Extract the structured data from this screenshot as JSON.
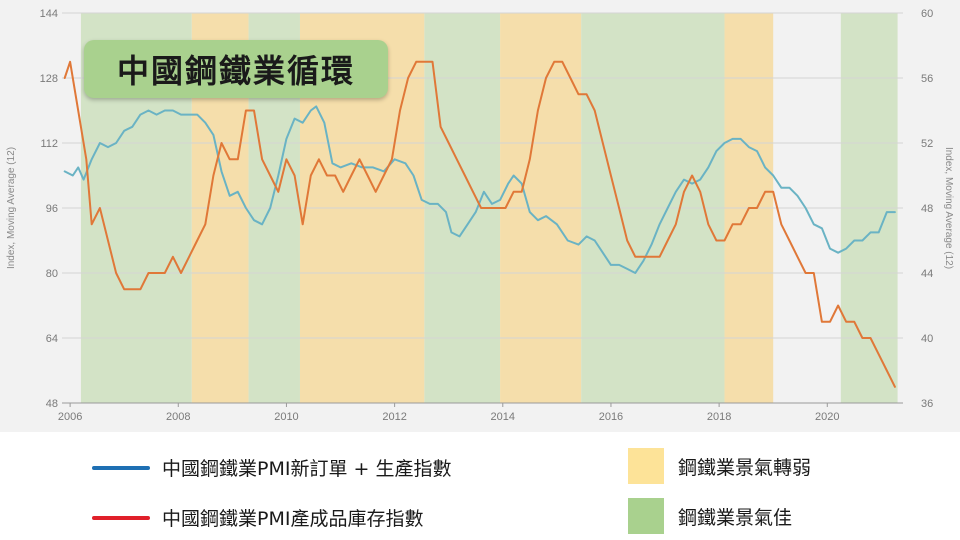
{
  "title": "中國鋼鐵業循環",
  "chart_data": {
    "type": "line",
    "x_axis": {
      "range": [
        2005.85,
        2021.4
      ],
      "ticks": [
        "2006",
        "2008",
        "2010",
        "2012",
        "2014",
        "2016",
        "2018",
        "2020"
      ]
    },
    "y_left": {
      "label": "Index, Moving Average (12)",
      "range": [
        48,
        144
      ],
      "ticks": [
        "48",
        "64",
        "80",
        "96",
        "112",
        "128",
        "144"
      ]
    },
    "y_right": {
      "label": "Index, Moving Average (12)",
      "range": [
        36,
        60
      ],
      "ticks": [
        "36",
        "40",
        "44",
        "48",
        "52",
        "56",
        "60"
      ]
    },
    "grid": true,
    "shaded_periods": [
      {
        "type": "good",
        "start": 2006.2,
        "end": 2008.25
      },
      {
        "type": "weak",
        "start": 2008.25,
        "end": 2009.3
      },
      {
        "type": "good",
        "start": 2009.3,
        "end": 2010.25
      },
      {
        "type": "weak",
        "start": 2010.25,
        "end": 2012.55
      },
      {
        "type": "good",
        "start": 2012.55,
        "end": 2013.95
      },
      {
        "type": "weak",
        "start": 2013.95,
        "end": 2015.45
      },
      {
        "type": "good",
        "start": 2015.45,
        "end": 2018.1
      },
      {
        "type": "weak",
        "start": 2018.1,
        "end": 2019.0
      },
      {
        "type": "good",
        "start": 2020.25,
        "end": 2021.3
      }
    ],
    "series": [
      {
        "name": "中國鋼鐵業PMI新訂單 + 生產指數",
        "axis": "left",
        "color": "#6ab3c4",
        "points": [
          [
            2005.9,
            105
          ],
          [
            2006.05,
            104
          ],
          [
            2006.15,
            106
          ],
          [
            2006.25,
            103
          ],
          [
            2006.4,
            108
          ],
          [
            2006.55,
            112
          ],
          [
            2006.7,
            111
          ],
          [
            2006.85,
            112
          ],
          [
            2007.0,
            115
          ],
          [
            2007.15,
            116
          ],
          [
            2007.3,
            119
          ],
          [
            2007.45,
            120
          ],
          [
            2007.6,
            119
          ],
          [
            2007.75,
            120
          ],
          [
            2007.9,
            120
          ],
          [
            2008.05,
            119
          ],
          [
            2008.2,
            119
          ],
          [
            2008.35,
            119
          ],
          [
            2008.5,
            117
          ],
          [
            2008.65,
            114
          ],
          [
            2008.8,
            105
          ],
          [
            2008.95,
            99
          ],
          [
            2009.1,
            100
          ],
          [
            2009.25,
            96
          ],
          [
            2009.4,
            93
          ],
          [
            2009.55,
            92
          ],
          [
            2009.7,
            96
          ],
          [
            2009.85,
            104
          ],
          [
            2010.0,
            113
          ],
          [
            2010.15,
            118
          ],
          [
            2010.3,
            117
          ],
          [
            2010.45,
            120
          ],
          [
            2010.55,
            121
          ],
          [
            2010.7,
            117
          ],
          [
            2010.85,
            107
          ],
          [
            2011.0,
            106
          ],
          [
            2011.2,
            107
          ],
          [
            2011.4,
            106
          ],
          [
            2011.6,
            106
          ],
          [
            2011.8,
            105
          ],
          [
            2012.0,
            108
          ],
          [
            2012.2,
            107
          ],
          [
            2012.35,
            104
          ],
          [
            2012.5,
            98
          ],
          [
            2012.65,
            97
          ],
          [
            2012.8,
            97
          ],
          [
            2012.95,
            95
          ],
          [
            2013.05,
            90
          ],
          [
            2013.2,
            89
          ],
          [
            2013.35,
            92
          ],
          [
            2013.5,
            95
          ],
          [
            2013.65,
            100
          ],
          [
            2013.8,
            97
          ],
          [
            2013.95,
            98
          ],
          [
            2014.1,
            102
          ],
          [
            2014.2,
            104
          ],
          [
            2014.35,
            102
          ],
          [
            2014.5,
            95
          ],
          [
            2014.65,
            93
          ],
          [
            2014.8,
            94
          ],
          [
            2015.0,
            92
          ],
          [
            2015.2,
            88
          ],
          [
            2015.4,
            87
          ],
          [
            2015.55,
            89
          ],
          [
            2015.7,
            88
          ],
          [
            2015.85,
            85
          ],
          [
            2016.0,
            82
          ],
          [
            2016.15,
            82
          ],
          [
            2016.3,
            81
          ],
          [
            2016.45,
            80
          ],
          [
            2016.6,
            83
          ],
          [
            2016.75,
            87
          ],
          [
            2016.9,
            92
          ],
          [
            2017.05,
            96
          ],
          [
            2017.2,
            100
          ],
          [
            2017.35,
            103
          ],
          [
            2017.5,
            102
          ],
          [
            2017.65,
            103
          ],
          [
            2017.8,
            106
          ],
          [
            2017.95,
            110
          ],
          [
            2018.1,
            112
          ],
          [
            2018.25,
            113
          ],
          [
            2018.4,
            113
          ],
          [
            2018.55,
            111
          ],
          [
            2018.7,
            110
          ],
          [
            2018.85,
            106
          ],
          [
            2019.0,
            104
          ],
          [
            2019.15,
            101
          ],
          [
            2019.3,
            101
          ],
          [
            2019.45,
            99
          ],
          [
            2019.6,
            96
          ],
          [
            2019.75,
            92
          ],
          [
            2019.9,
            91
          ],
          [
            2020.05,
            86
          ],
          [
            2020.2,
            85
          ],
          [
            2020.35,
            86
          ],
          [
            2020.5,
            88
          ],
          [
            2020.65,
            88
          ],
          [
            2020.8,
            90
          ],
          [
            2020.95,
            90
          ],
          [
            2021.1,
            95
          ],
          [
            2021.25,
            95
          ]
        ]
      },
      {
        "name": "中國鋼鐵業PMI產成品庫存指數",
        "axis": "right",
        "color": "#e07838",
        "points": [
          [
            2005.9,
            56
          ],
          [
            2006.0,
            57
          ],
          [
            2006.1,
            55
          ],
          [
            2006.2,
            53
          ],
          [
            2006.3,
            51
          ],
          [
            2006.4,
            47
          ],
          [
            2006.55,
            48
          ],
          [
            2006.7,
            46
          ],
          [
            2006.85,
            44
          ],
          [
            2007.0,
            43
          ],
          [
            2007.15,
            43
          ],
          [
            2007.3,
            43
          ],
          [
            2007.45,
            44
          ],
          [
            2007.6,
            44
          ],
          [
            2007.75,
            44
          ],
          [
            2007.9,
            45
          ],
          [
            2008.05,
            44
          ],
          [
            2008.2,
            45
          ],
          [
            2008.35,
            46
          ],
          [
            2008.5,
            47
          ],
          [
            2008.65,
            50
          ],
          [
            2008.8,
            52
          ],
          [
            2008.95,
            51
          ],
          [
            2009.1,
            51
          ],
          [
            2009.25,
            54
          ],
          [
            2009.4,
            54
          ],
          [
            2009.55,
            51
          ],
          [
            2009.7,
            50
          ],
          [
            2009.85,
            49
          ],
          [
            2010.0,
            51
          ],
          [
            2010.15,
            50
          ],
          [
            2010.3,
            47
          ],
          [
            2010.45,
            50
          ],
          [
            2010.6,
            51
          ],
          [
            2010.75,
            50
          ],
          [
            2010.9,
            50
          ],
          [
            2011.05,
            49
          ],
          [
            2011.2,
            50
          ],
          [
            2011.35,
            51
          ],
          [
            2011.5,
            50
          ],
          [
            2011.65,
            49
          ],
          [
            2011.8,
            50
          ],
          [
            2011.95,
            51
          ],
          [
            2012.1,
            54
          ],
          [
            2012.25,
            56
          ],
          [
            2012.4,
            57
          ],
          [
            2012.55,
            57
          ],
          [
            2012.7,
            57
          ],
          [
            2012.85,
            53
          ],
          [
            2013.0,
            52
          ],
          [
            2013.15,
            51
          ],
          [
            2013.3,
            50
          ],
          [
            2013.45,
            49
          ],
          [
            2013.6,
            48
          ],
          [
            2013.75,
            48
          ],
          [
            2013.9,
            48
          ],
          [
            2014.05,
            48
          ],
          [
            2014.2,
            49
          ],
          [
            2014.35,
            49
          ],
          [
            2014.5,
            51
          ],
          [
            2014.65,
            54
          ],
          [
            2014.8,
            56
          ],
          [
            2014.95,
            57
          ],
          [
            2015.1,
            57
          ],
          [
            2015.25,
            56
          ],
          [
            2015.4,
            55
          ],
          [
            2015.55,
            55
          ],
          [
            2015.7,
            54
          ],
          [
            2015.85,
            52
          ],
          [
            2016.0,
            50
          ],
          [
            2016.15,
            48
          ],
          [
            2016.3,
            46
          ],
          [
            2016.45,
            45
          ],
          [
            2016.6,
            45
          ],
          [
            2016.75,
            45
          ],
          [
            2016.9,
            45
          ],
          [
            2017.05,
            46
          ],
          [
            2017.2,
            47
          ],
          [
            2017.35,
            49
          ],
          [
            2017.5,
            50
          ],
          [
            2017.65,
            49
          ],
          [
            2017.8,
            47
          ],
          [
            2017.95,
            46
          ],
          [
            2018.1,
            46
          ],
          [
            2018.25,
            47
          ],
          [
            2018.4,
            47
          ],
          [
            2018.55,
            48
          ],
          [
            2018.7,
            48
          ],
          [
            2018.85,
            49
          ],
          [
            2019.0,
            49
          ],
          [
            2019.15,
            47
          ],
          [
            2019.3,
            46
          ],
          [
            2019.45,
            45
          ],
          [
            2019.6,
            44
          ],
          [
            2019.75,
            44
          ],
          [
            2019.9,
            41
          ],
          [
            2020.05,
            41
          ],
          [
            2020.2,
            42
          ],
          [
            2020.35,
            41
          ],
          [
            2020.5,
            41
          ],
          [
            2020.65,
            40
          ],
          [
            2020.8,
            40
          ],
          [
            2020.95,
            39
          ],
          [
            2021.1,
            38
          ],
          [
            2021.25,
            37
          ]
        ]
      }
    ]
  },
  "legend": {
    "items": [
      {
        "label": "中國鋼鐵業PMI新訂單 + 生產指數",
        "kind": "line",
        "color": "#1e6fb3"
      },
      {
        "label": "中國鋼鐵業PMI產成品庫存指數",
        "kind": "line",
        "color": "#e0202a"
      },
      {
        "label": "鋼鐵業景氣轉弱",
        "kind": "box",
        "color": "#fde398"
      },
      {
        "label": "鋼鐵業景氣佳",
        "kind": "box",
        "color": "#a9d18e"
      }
    ]
  },
  "colors": {
    "weak_shade": "#f5deab",
    "good_shade": "#d3e3c6"
  }
}
